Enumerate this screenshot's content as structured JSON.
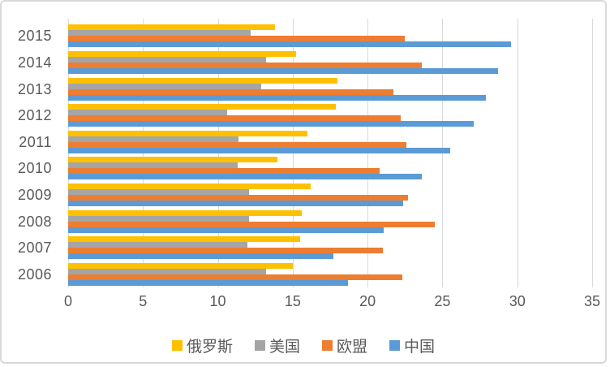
{
  "chart_data": {
    "type": "bar",
    "orientation": "horizontal",
    "grouped": true,
    "title": "",
    "xlabel": "",
    "ylabel": "",
    "categories": [
      "2006",
      "2007",
      "2008",
      "2009",
      "2010",
      "2011",
      "2012",
      "2013",
      "2014",
      "2015"
    ],
    "category_order_top_to_bottom": [
      "2015",
      "2014",
      "2013",
      "2012",
      "2011",
      "2010",
      "2009",
      "2008",
      "2007",
      "2006"
    ],
    "series": [
      {
        "name": "俄罗斯",
        "color": "#FFC000",
        "values": [
          15.0,
          15.5,
          15.6,
          16.2,
          14.0,
          16.0,
          17.9,
          18.0,
          15.2,
          13.8
        ]
      },
      {
        "name": "美国",
        "color": "#A5A5A5",
        "values": [
          13.2,
          12.0,
          12.1,
          12.1,
          11.3,
          11.4,
          10.6,
          12.9,
          13.2,
          12.2
        ]
      },
      {
        "name": "欧盟",
        "color": "#ED7D31",
        "values": [
          22.3,
          21.0,
          24.5,
          22.7,
          20.8,
          22.6,
          22.2,
          21.7,
          23.6,
          22.5
        ]
      },
      {
        "name": "中国",
        "color": "#5B9BD5",
        "values": [
          18.7,
          17.7,
          21.1,
          22.4,
          23.6,
          25.5,
          27.1,
          27.9,
          28.7,
          29.6
        ]
      }
    ],
    "bar_order_top_to_bottom_within_group": [
      "俄罗斯",
      "美国",
      "欧盟",
      "中国"
    ],
    "xlim": [
      0,
      35
    ],
    "xticks": [
      0,
      5,
      10,
      15,
      20,
      25,
      30,
      35
    ],
    "grid": true,
    "legend_position": "bottom",
    "legend_order": [
      "俄罗斯",
      "美国",
      "欧盟",
      "中国"
    ]
  },
  "styles": {
    "text_color": "#595959",
    "gridline_color": "#d9d9d9",
    "frame_border_color": "#d9d9d9",
    "background": "#ffffff"
  }
}
